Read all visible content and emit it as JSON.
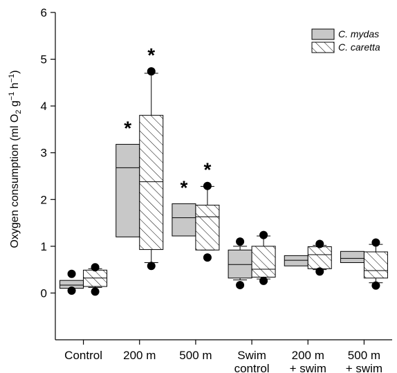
{
  "chart_data": {
    "type": "box",
    "title": "",
    "xlabel": "",
    "ylabel": {
      "pre": "Oxygen consumption (ml O",
      "sub": "2",
      "mid1": " g",
      "sup1": "−1",
      "mid2": " h",
      "sup2": "−1",
      "post": ")"
    },
    "ylim": [
      -1,
      6
    ],
    "yticks": [
      "0",
      "1",
      "2",
      "3",
      "4",
      "5",
      "6"
    ],
    "grid": false,
    "legend_position": "top-right",
    "categories": [
      [
        "Control"
      ],
      [
        "200 m"
      ],
      [
        "500 m"
      ],
      [
        "Swim",
        "control"
      ],
      [
        "200 m",
        "+ swim"
      ],
      [
        "500 m",
        "+ swim"
      ]
    ],
    "series": [
      {
        "name": "C. mydas",
        "fill": "#c8c8c8",
        "boxes": [
          {
            "q1": 0.1,
            "median": 0.17,
            "q3": 0.27,
            "whisker_low": null,
            "whisker_high": null,
            "outliers": [
              0.05,
              0.41
            ],
            "significant": false
          },
          {
            "q1": 1.2,
            "median": 2.68,
            "q3": 3.18,
            "whisker_low": null,
            "whisker_high": null,
            "outliers": [],
            "significant": true
          },
          {
            "q1": 1.22,
            "median": 1.61,
            "q3": 1.91,
            "whisker_low": null,
            "whisker_high": null,
            "outliers": [],
            "significant": true
          },
          {
            "q1": 0.32,
            "median": 0.61,
            "q3": 0.92,
            "whisker_low": 0.28,
            "whisker_high": 1.0,
            "outliers": [
              0.17,
              1.1
            ],
            "significant": false
          },
          {
            "q1": 0.58,
            "median": 0.7,
            "q3": 0.8,
            "whisker_low": null,
            "whisker_high": null,
            "outliers": [],
            "significant": false
          },
          {
            "q1": 0.65,
            "median": 0.74,
            "q3": 0.89,
            "whisker_low": null,
            "whisker_high": null,
            "outliers": [],
            "significant": false
          }
        ]
      },
      {
        "name": "C. caretta",
        "fill": "hatch",
        "boxes": [
          {
            "q1": 0.14,
            "median": 0.32,
            "q3": 0.49,
            "whisker_low": 0.12,
            "whisker_high": 0.52,
            "outliers": [
              0.03,
              0.55
            ],
            "significant": false
          },
          {
            "q1": 0.93,
            "median": 2.38,
            "q3": 3.8,
            "whisker_low": 0.65,
            "whisker_high": 4.7,
            "outliers": [
              0.58,
              4.74
            ],
            "significant": true
          },
          {
            "q1": 0.92,
            "median": 1.63,
            "q3": 1.88,
            "whisker_low": 0.92,
            "whisker_high": 2.28,
            "outliers": [
              0.76,
              2.29
            ],
            "significant": true
          },
          {
            "q1": 0.34,
            "median": 0.51,
            "q3": 1.0,
            "whisker_low": 0.3,
            "whisker_high": 1.22,
            "outliers": [
              0.26,
              1.24
            ],
            "significant": false
          },
          {
            "q1": 0.52,
            "median": 0.82,
            "q3": 0.99,
            "whisker_low": 0.5,
            "whisker_high": 1.02,
            "outliers": [
              0.46,
              1.05
            ],
            "significant": false
          },
          {
            "q1": 0.32,
            "median": 0.48,
            "q3": 0.88,
            "whisker_low": 0.22,
            "whisker_high": 1.04,
            "outliers": [
              0.16,
              1.08
            ],
            "significant": false
          }
        ]
      }
    ],
    "significance_marker": "*"
  }
}
